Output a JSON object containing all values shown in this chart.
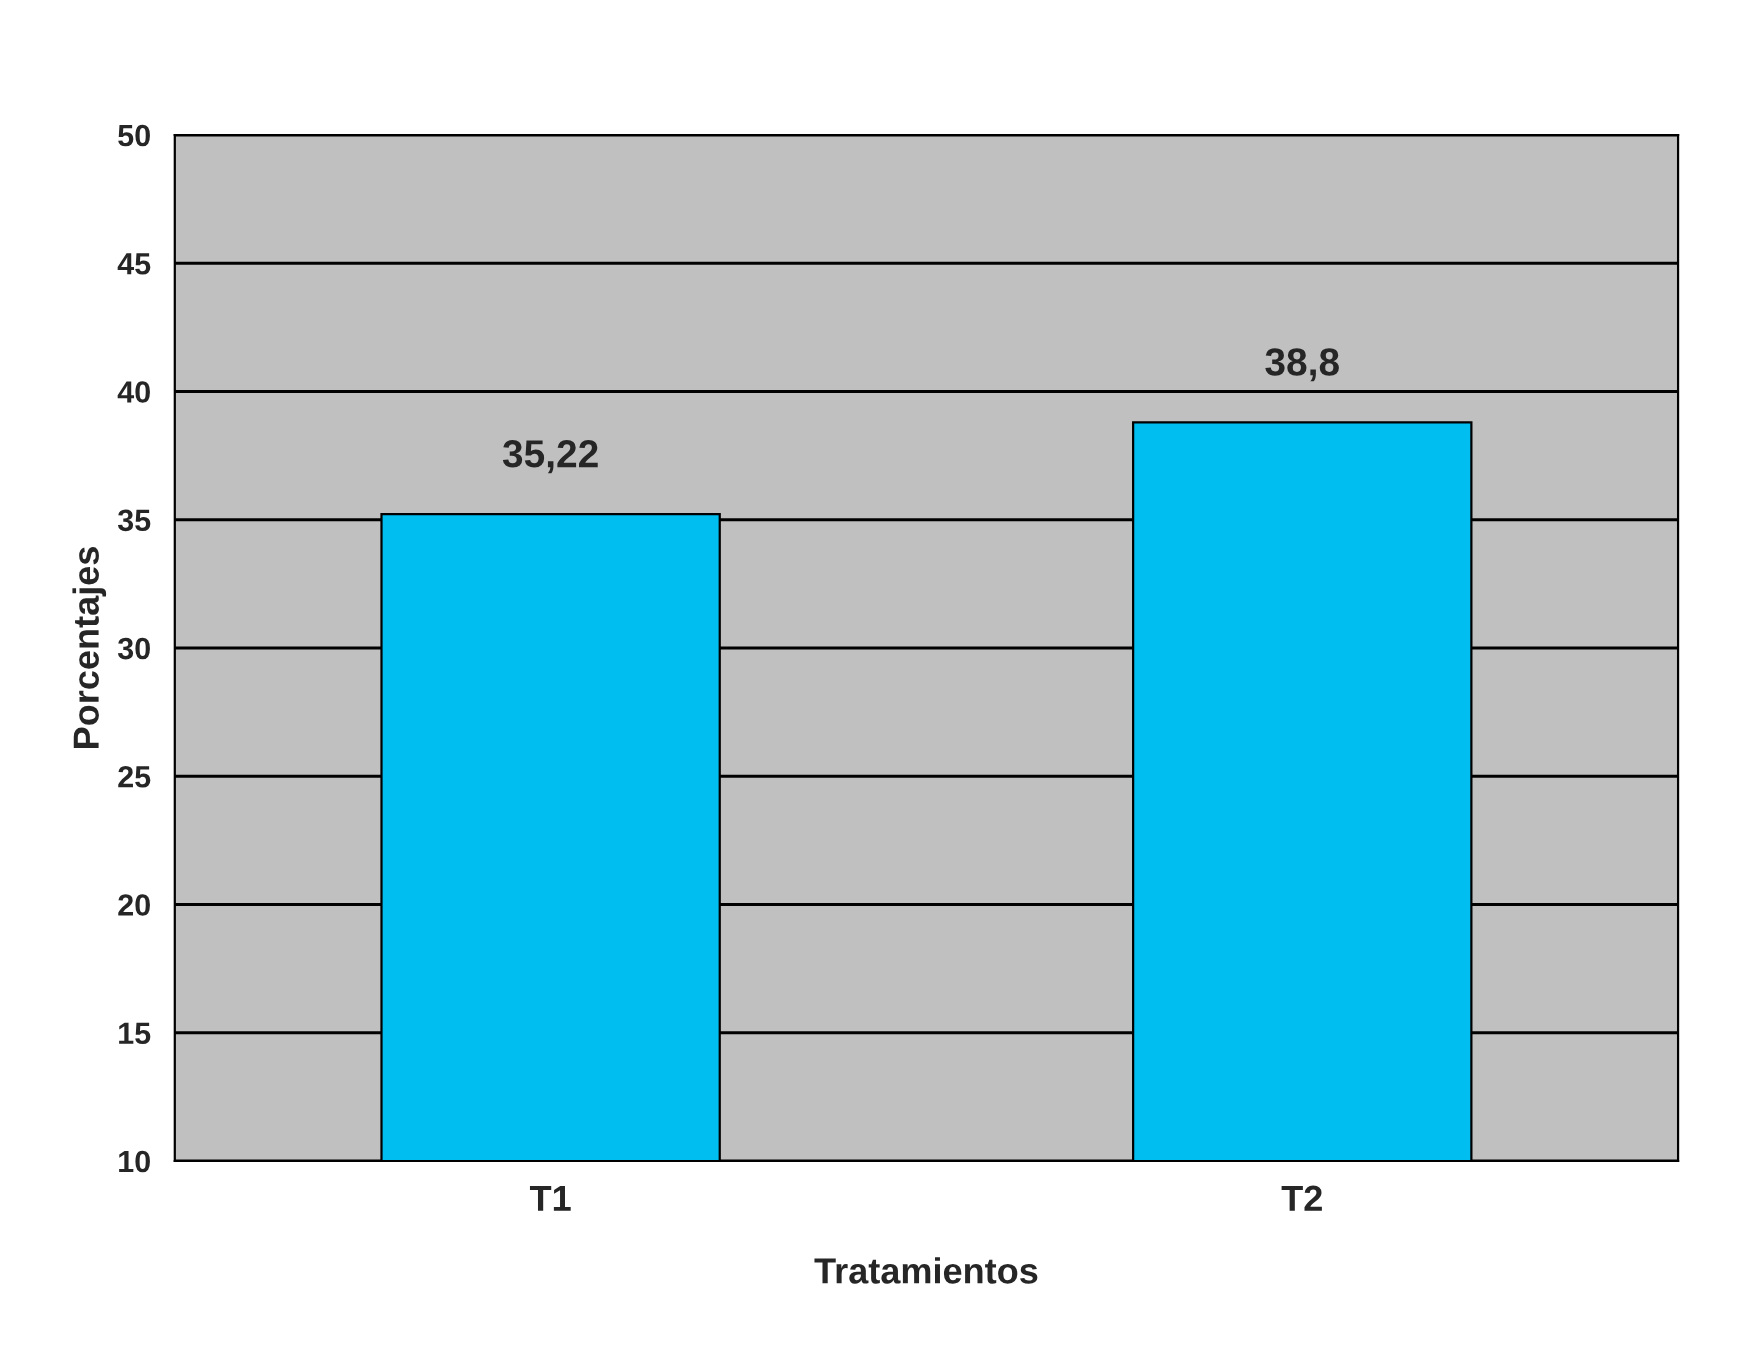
{
  "chart_data": {
    "type": "bar",
    "xlabel": "Tratamientos",
    "ylabel": "Porcentajes",
    "categories": [
      "T1",
      "T2"
    ],
    "values": [
      35.22,
      38.8
    ],
    "value_labels": [
      "35,22",
      "38,8"
    ],
    "color": "#00bff0",
    "ylim": [
      10,
      50
    ],
    "yticks": [
      10,
      15,
      20,
      25,
      30,
      35,
      40,
      45,
      50
    ],
    "grid": "y",
    "legend": false
  }
}
